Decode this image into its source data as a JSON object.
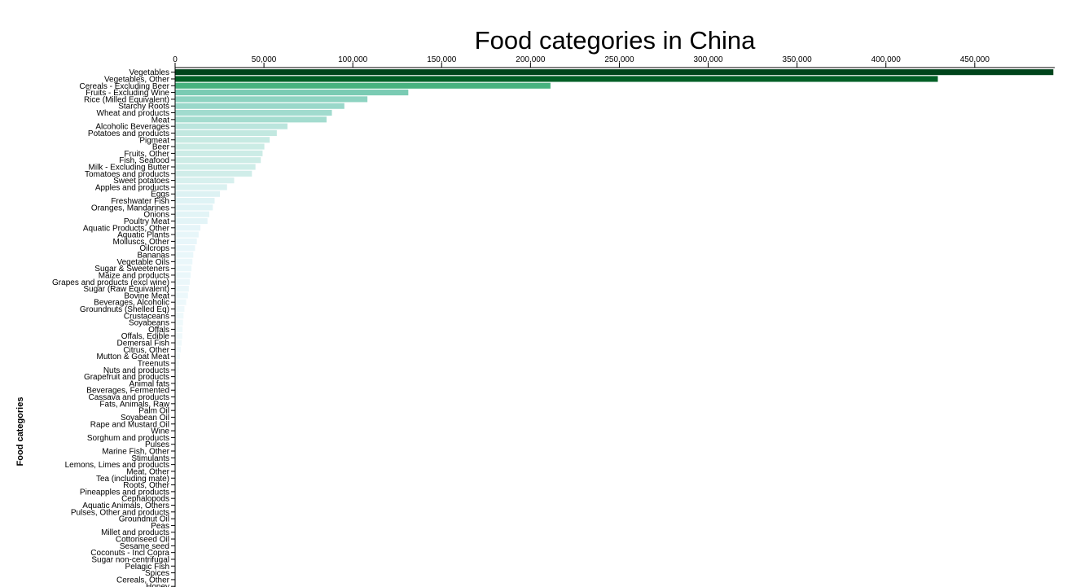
{
  "chart_data": {
    "type": "bar",
    "orientation": "horizontal",
    "title": "Food categories in China",
    "xlabel": "",
    "ylabel": "Food categories",
    "xlim": [
      0,
      495000
    ],
    "xticks": [
      0,
      50000,
      100000,
      150000,
      200000,
      250000,
      300000,
      350000,
      400000,
      450000
    ],
    "xtick_labels": [
      "0",
      "50,000",
      "100,000",
      "150,000",
      "200,000",
      "250,000",
      "300,000",
      "350,000",
      "400,000",
      "450,000"
    ],
    "axis_position": "top",
    "grid": false,
    "color_scale": [
      "#f7fcfd",
      "#e5f5f9",
      "#ccece6",
      "#99d8c9",
      "#66c2a4",
      "#41ae76",
      "#238b45",
      "#006d2c",
      "#00441b"
    ],
    "categories": [
      "Vegetables",
      "Vegetables, Other",
      "Cereals - Excluding Beer",
      "Fruits - Excluding Wine",
      "Rice (Milled Equivalent)",
      "Starchy Roots",
      "Wheat and products",
      "Meat",
      "Alcoholic Beverages",
      "Potatoes and products",
      "Pigmeat",
      "Beer",
      "Fruits, Other",
      "Fish, Seafood",
      "Milk - Excluding Butter",
      "Tomatoes and products",
      "Sweet potatoes",
      "Apples and products",
      "Eggs",
      "Freshwater Fish",
      "Oranges, Mandarines",
      "Onions",
      "Poultry Meat",
      "Aquatic Products, Other",
      "Aquatic Plants",
      "Molluscs, Other",
      "Oilcrops",
      "Bananas",
      "Vegetable Oils",
      "Sugar & Sweeteners",
      "Maize and products",
      "Grapes and products (excl wine)",
      "Sugar (Raw Equivalent)",
      "Bovine Meat",
      "Beverages, Alcoholic",
      "Groundnuts (Shelled Eq)",
      "Crustaceans",
      "Soyabeans",
      "Offals",
      "Offals, Edible",
      "Demersal Fish",
      "Citrus, Other",
      "Mutton & Goat Meat",
      "Treenuts",
      "Nuts and products",
      "Grapefruit and products",
      "Animal fats",
      "Beverages, Fermented",
      "Cassava and products",
      "Fats, Animals, Raw",
      "Palm Oil",
      "Soyabean Oil",
      "Rape and Mustard Oil",
      "Wine",
      "Sorghum and products",
      "Pulses",
      "Marine Fish, Other",
      "Stimulants",
      "Lemons, Limes and products",
      "Meat, Other",
      "Tea (including mate)",
      "Roots, Other",
      "Pineapples and products",
      "Cephalopods",
      "Aquatic Animals, Others",
      "Pulses, Other and products",
      "Groundnut Oil",
      "Peas",
      "Millet and products",
      "Cottonseed Oil",
      "Sesame seed",
      "Coconuts - Incl Copra",
      "Sugar non-centrifugal",
      "Pelagic Fish",
      "Spices",
      "Cereals, Other",
      "Honey"
    ],
    "values": [
      494000,
      429000,
      211000,
      131000,
      108000,
      95000,
      88000,
      85000,
      63000,
      57000,
      53000,
      50000,
      49000,
      48000,
      45000,
      43000,
      33000,
      29000,
      25000,
      22000,
      21000,
      19000,
      18000,
      14000,
      13000,
      12000,
      11000,
      10000,
      9500,
      9000,
      8500,
      8000,
      7500,
      7000,
      6000,
      5000,
      4500,
      4200,
      4000,
      3800,
      3500,
      3000,
      2500,
      1900,
      1800,
      1600,
      1400,
      1300,
      1200,
      1100,
      1000,
      900,
      850,
      800,
      750,
      700,
      650,
      600,
      550,
      500,
      450,
      400,
      380,
      360,
      340,
      320,
      300,
      280,
      260,
      240,
      220,
      200,
      180,
      160,
      140,
      120,
      100
    ]
  }
}
